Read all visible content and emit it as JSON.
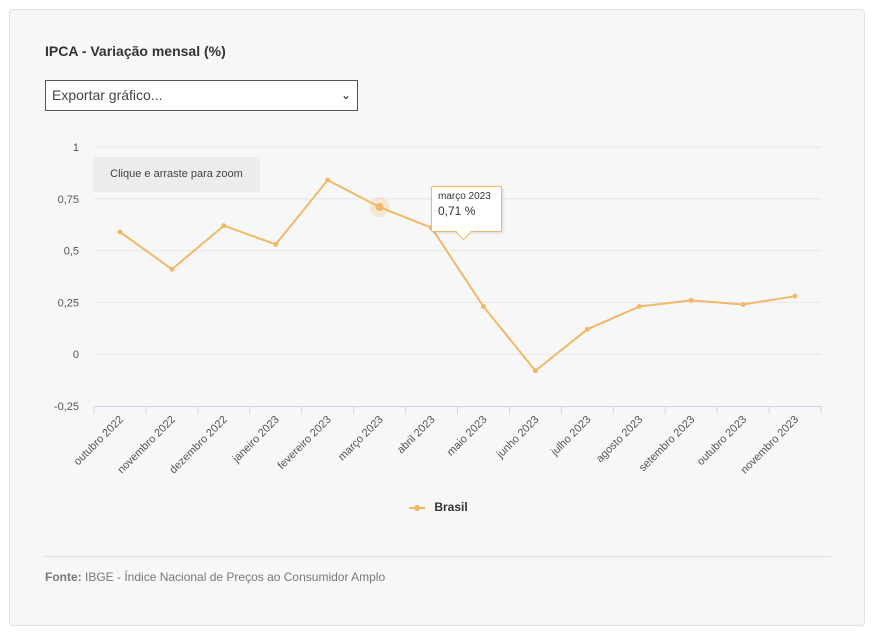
{
  "title": "IPCA - Variação mensal (%)",
  "export_select": {
    "value": "Exportar gráfico..."
  },
  "zoom_hint": "Clique e arraste para zoom",
  "tooltip": {
    "label": "março 2023",
    "value": "0,71 %"
  },
  "legend": {
    "label": "Brasil"
  },
  "source": {
    "prefix": "Fonte:",
    "text": "IBGE - Índice Nacional de Preços ao Consumidor Amplo"
  },
  "colors": {
    "series": "#f0b968",
    "grid": "#e6e6e6",
    "axis": "#ccd6eb"
  },
  "chart_data": {
    "type": "line",
    "title": "IPCA - Variação mensal (%)",
    "xlabel": "",
    "ylabel": "",
    "ylim": [
      -0.25,
      1
    ],
    "y_ticks": [
      "1",
      "0,75",
      "0,5",
      "0,25",
      "0",
      "-0,25"
    ],
    "y_tick_values": [
      1,
      0.75,
      0.5,
      0.25,
      0,
      -0.25
    ],
    "categories": [
      "outubro 2022",
      "novembro 2022",
      "dezembro 2022",
      "janeiro 2023",
      "fevereiro 2023",
      "março 2023",
      "abril 2023",
      "maio 2023",
      "junho 2023",
      "julho 2023",
      "agosto 2023",
      "setembro 2023",
      "outubro 2023",
      "novembro 2023"
    ],
    "series": [
      {
        "name": "Brasil",
        "values": [
          0.59,
          0.41,
          0.62,
          0.53,
          0.84,
          0.71,
          0.61,
          0.23,
          -0.08,
          0.12,
          0.23,
          0.26,
          0.24,
          0.28
        ]
      }
    ],
    "grid": true,
    "legend": "bottom-center",
    "highlighted_index": 5
  }
}
